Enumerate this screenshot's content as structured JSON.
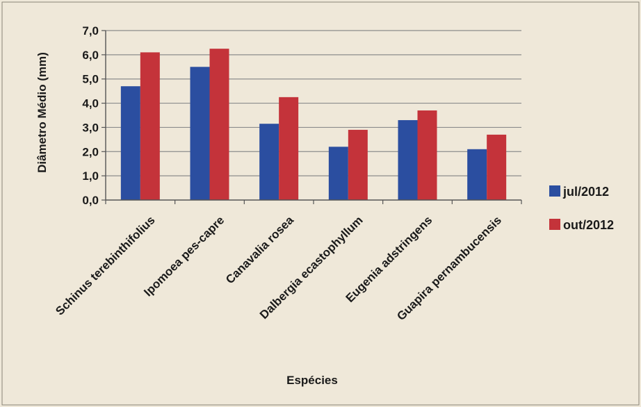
{
  "chart_data": {
    "type": "bar",
    "title": "",
    "xlabel": "Espécies",
    "ylabel": "Diâmetro Médio (mm)",
    "ylim": [
      0,
      7
    ],
    "ytick_step": 1,
    "ytick_labels": [
      "0,0",
      "1,0",
      "2,0",
      "3,0",
      "4,0",
      "5,0",
      "6,0",
      "7,0"
    ],
    "grid": true,
    "legend_position": "right",
    "categories": [
      "Schinus terebinthifolius",
      "Ipomoea pes-capre",
      "Canavalia rosea",
      "Dalbergia ecastophyllum",
      "Eugenia adstringens",
      "Guapira pernambucensis"
    ],
    "series": [
      {
        "name": "jul/2012",
        "color": "#2b4ea0",
        "values": [
          4.7,
          5.5,
          3.15,
          2.2,
          3.3,
          2.1
        ]
      },
      {
        "name": "out/2012",
        "color": "#c4333a",
        "values": [
          6.1,
          6.25,
          4.25,
          2.9,
          3.7,
          2.7
        ]
      }
    ]
  }
}
